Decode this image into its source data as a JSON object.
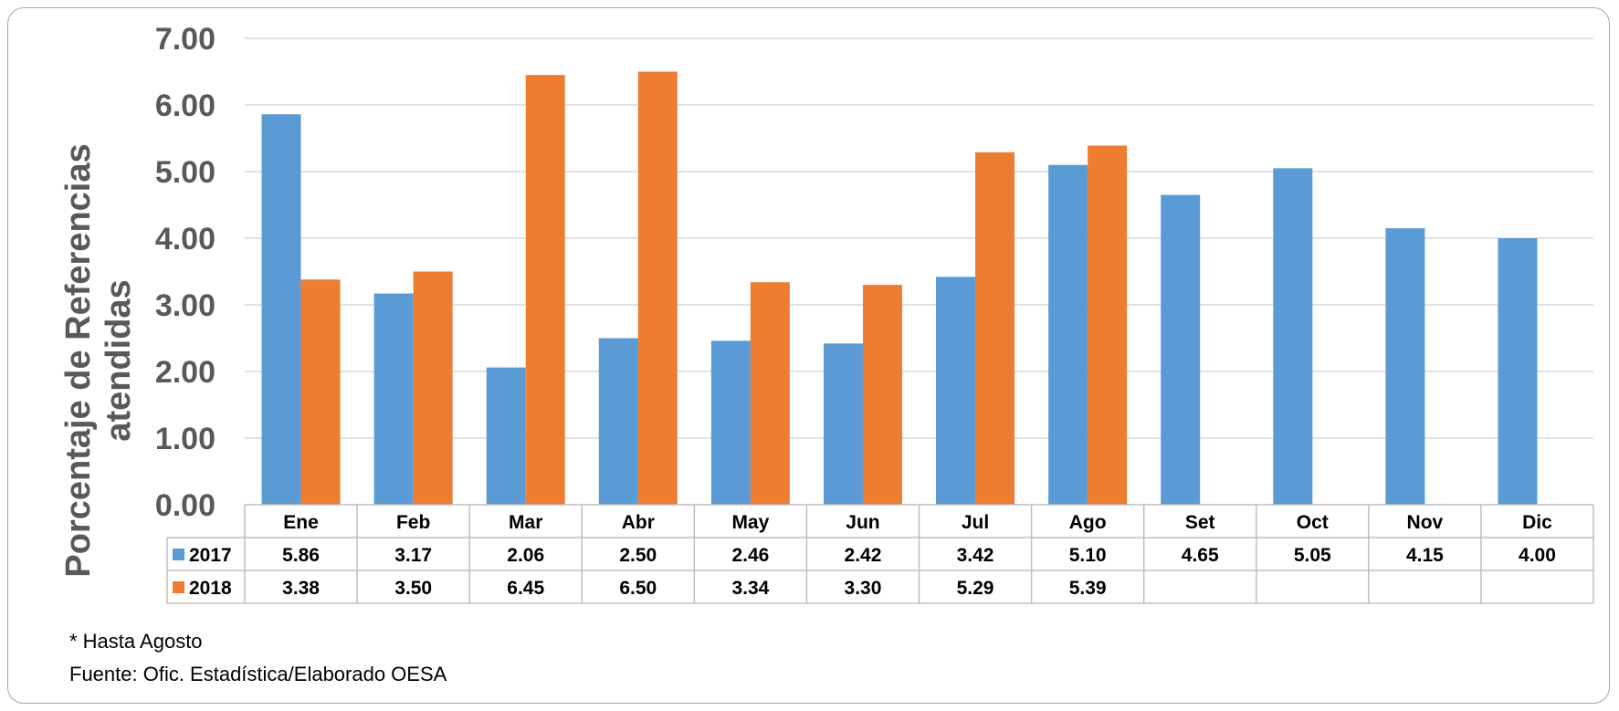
{
  "chart_data": {
    "type": "bar",
    "categories": [
      "Ene",
      "Feb",
      "Mar",
      "Abr",
      "May",
      "Jun",
      "Jul",
      "Ago",
      "Set",
      "Oct",
      "Nov",
      "Dic"
    ],
    "series": [
      {
        "name": "2017",
        "color": "#5b9bd5",
        "values": [
          5.86,
          3.17,
          2.06,
          2.5,
          2.46,
          2.42,
          3.42,
          5.1,
          4.65,
          5.05,
          4.15,
          4.0
        ]
      },
      {
        "name": "2018",
        "color": "#ed7d31",
        "values": [
          3.38,
          3.5,
          6.45,
          6.5,
          3.34,
          3.3,
          5.29,
          5.39,
          null,
          null,
          null,
          null
        ]
      }
    ],
    "table_values": {
      "2017": [
        "5.86",
        "3.17",
        "2.06",
        "2.50",
        "2.46",
        "2.42",
        "3.42",
        "5.10",
        "4.65",
        "5.05",
        "4.15",
        "4.00"
      ],
      "2018": [
        "3.38",
        "3.50",
        "6.45",
        "6.50",
        "3.34",
        "3.30",
        "5.29",
        "5.39",
        "",
        "",
        "",
        ""
      ]
    },
    "yticks": [
      "0.00",
      "1.00",
      "2.00",
      "3.00",
      "4.00",
      "5.00",
      "6.00",
      "7.00"
    ],
    "ylim": [
      0,
      7
    ],
    "ylabel_line1": "Porcentaje de Referencias",
    "ylabel_line2": "atendidas",
    "grid": true,
    "legend": "data-table"
  },
  "footnotes": {
    "note": "* Hasta Agosto",
    "source": "Fuente: Ofic. Estadística/Elaborado OESA"
  }
}
